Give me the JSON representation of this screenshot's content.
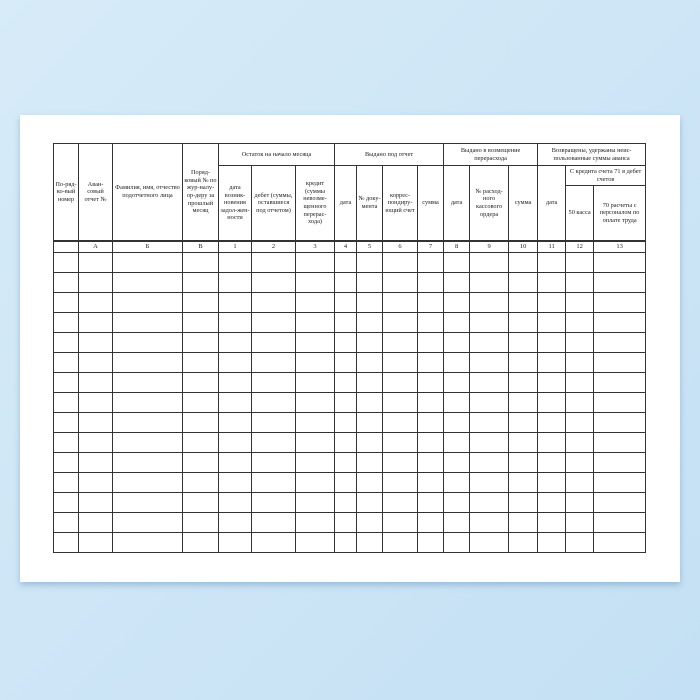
{
  "form": {
    "headers": {
      "c0": "По-ряд-ко-вый номер",
      "c1": "Аван-совый отчет №",
      "c2": "Фамилия, имя, отчество подотчетного лица",
      "c3": "Поряд-ковый № по жур-налу-ор-деру за прошлый месяц",
      "g1": "Остаток на начало месяца",
      "c4": "дата возник-новения задол-жен-ности",
      "c5": "дебет (суммы, оставшиеся под отчетом)",
      "c6": "кредит (суммы невозме-щенного перерас-хода)",
      "g2": "Выдано под отчет",
      "c7": "дата",
      "c8": "№ доку-мента",
      "c9": "коррес-пондиру-ющий счет",
      "c10": "сумма",
      "g3": "Выдано в возмещение перерасхода",
      "c11": "дата",
      "c12": "№ расход-ного кассового ордера",
      "c13": "сумма",
      "g4": "Возвращены, удержаны неис-пользованные суммы аванса",
      "c14": "дата",
      "g5": "С кредита счета 71 в дебет счетов",
      "c15": "50 касса",
      "c16": "70 расчеты с персоналом по оплате труда"
    },
    "index_row": [
      "",
      "А",
      "Б",
      "В",
      "1",
      "2",
      "3",
      "4",
      "5",
      "6",
      "7",
      "8",
      "9",
      "10",
      "11",
      "12",
      "13"
    ],
    "empty_rows": 15
  }
}
